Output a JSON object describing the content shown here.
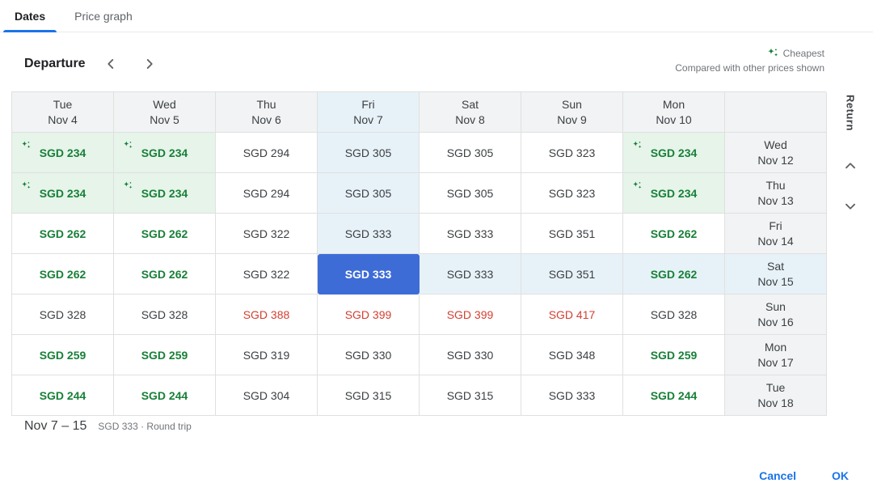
{
  "tabs": [
    {
      "label": "Dates",
      "active": true
    },
    {
      "label": "Price graph",
      "active": false
    }
  ],
  "toolbar": {
    "departure_label": "Departure"
  },
  "legend": {
    "cheapest_label": "Cheapest",
    "compared_label": "Compared with other prices shown"
  },
  "grid": {
    "return_label": "Return",
    "columns": [
      {
        "day": "Tue",
        "date": "Nov 4"
      },
      {
        "day": "Wed",
        "date": "Nov 5"
      },
      {
        "day": "Thu",
        "date": "Nov 6"
      },
      {
        "day": "Fri",
        "date": "Nov 7",
        "selected": true
      },
      {
        "day": "Sat",
        "date": "Nov 8"
      },
      {
        "day": "Sun",
        "date": "Nov 9"
      },
      {
        "day": "Mon",
        "date": "Nov 10"
      }
    ],
    "rows": [
      {
        "day": "Wed",
        "date": "Nov 12",
        "cells": [
          {
            "price": "SGD 234",
            "style": "cheapest"
          },
          {
            "price": "SGD 234",
            "style": "cheapest"
          },
          {
            "price": "SGD 294",
            "style": "normal"
          },
          {
            "price": "SGD 305",
            "style": "normal",
            "tint": true
          },
          {
            "price": "SGD 305",
            "style": "normal"
          },
          {
            "price": "SGD 323",
            "style": "normal"
          },
          {
            "price": "SGD 234",
            "style": "cheapest"
          }
        ]
      },
      {
        "day": "Thu",
        "date": "Nov 13",
        "cells": [
          {
            "price": "SGD 234",
            "style": "cheapest"
          },
          {
            "price": "SGD 234",
            "style": "cheapest"
          },
          {
            "price": "SGD 294",
            "style": "normal"
          },
          {
            "price": "SGD 305",
            "style": "normal",
            "tint": true
          },
          {
            "price": "SGD 305",
            "style": "normal"
          },
          {
            "price": "SGD 323",
            "style": "normal"
          },
          {
            "price": "SGD 234",
            "style": "cheapest"
          }
        ]
      },
      {
        "day": "Fri",
        "date": "Nov 14",
        "cells": [
          {
            "price": "SGD 262",
            "style": "low"
          },
          {
            "price": "SGD 262",
            "style": "low"
          },
          {
            "price": "SGD 322",
            "style": "normal"
          },
          {
            "price": "SGD 333",
            "style": "normal",
            "tint": true
          },
          {
            "price": "SGD 333",
            "style": "normal"
          },
          {
            "price": "SGD 351",
            "style": "normal"
          },
          {
            "price": "SGD 262",
            "style": "low"
          }
        ]
      },
      {
        "day": "Sat",
        "date": "Nov 15",
        "header_tint": true,
        "cells": [
          {
            "price": "SGD 262",
            "style": "low"
          },
          {
            "price": "SGD 262",
            "style": "low"
          },
          {
            "price": "SGD 322",
            "style": "normal"
          },
          {
            "price": "SGD 333",
            "style": "selected"
          },
          {
            "price": "SGD 333",
            "style": "normal",
            "tint": true
          },
          {
            "price": "SGD 351",
            "style": "normal",
            "tint": true
          },
          {
            "price": "SGD 262",
            "style": "low",
            "tint": true
          }
        ]
      },
      {
        "day": "Sun",
        "date": "Nov 16",
        "cells": [
          {
            "price": "SGD 328",
            "style": "normal"
          },
          {
            "price": "SGD 328",
            "style": "normal"
          },
          {
            "price": "SGD 388",
            "style": "high"
          },
          {
            "price": "SGD 399",
            "style": "high"
          },
          {
            "price": "SGD 399",
            "style": "high"
          },
          {
            "price": "SGD 417",
            "style": "high"
          },
          {
            "price": "SGD 328",
            "style": "normal"
          }
        ]
      },
      {
        "day": "Mon",
        "date": "Nov 17",
        "cells": [
          {
            "price": "SGD 259",
            "style": "low"
          },
          {
            "price": "SGD 259",
            "style": "low"
          },
          {
            "price": "SGD 319",
            "style": "normal"
          },
          {
            "price": "SGD 330",
            "style": "normal"
          },
          {
            "price": "SGD 330",
            "style": "normal"
          },
          {
            "price": "SGD 348",
            "style": "normal"
          },
          {
            "price": "SGD 259",
            "style": "low"
          }
        ]
      },
      {
        "day": "Tue",
        "date": "Nov 18",
        "cells": [
          {
            "price": "SGD 244",
            "style": "low"
          },
          {
            "price": "SGD 244",
            "style": "low"
          },
          {
            "price": "SGD 304",
            "style": "normal"
          },
          {
            "price": "SGD 315",
            "style": "normal"
          },
          {
            "price": "SGD 315",
            "style": "normal"
          },
          {
            "price": "SGD 333",
            "style": "normal"
          },
          {
            "price": "SGD 244",
            "style": "low"
          }
        ]
      }
    ]
  },
  "footer": {
    "date_range": "Nov 7 – 15",
    "price_summary": "SGD 333 · Round trip"
  },
  "actions": {
    "cancel_label": "Cancel",
    "ok_label": "OK"
  },
  "colors": {
    "accent": "#1a73e8",
    "cheapest_green": "#188038",
    "cheapest_bg": "#e6f4ea",
    "high_red": "#d23f31",
    "selected_blue": "#3e6cd7",
    "tint_blue": "#e7f2f8",
    "header_gray": "#f1f3f4"
  }
}
